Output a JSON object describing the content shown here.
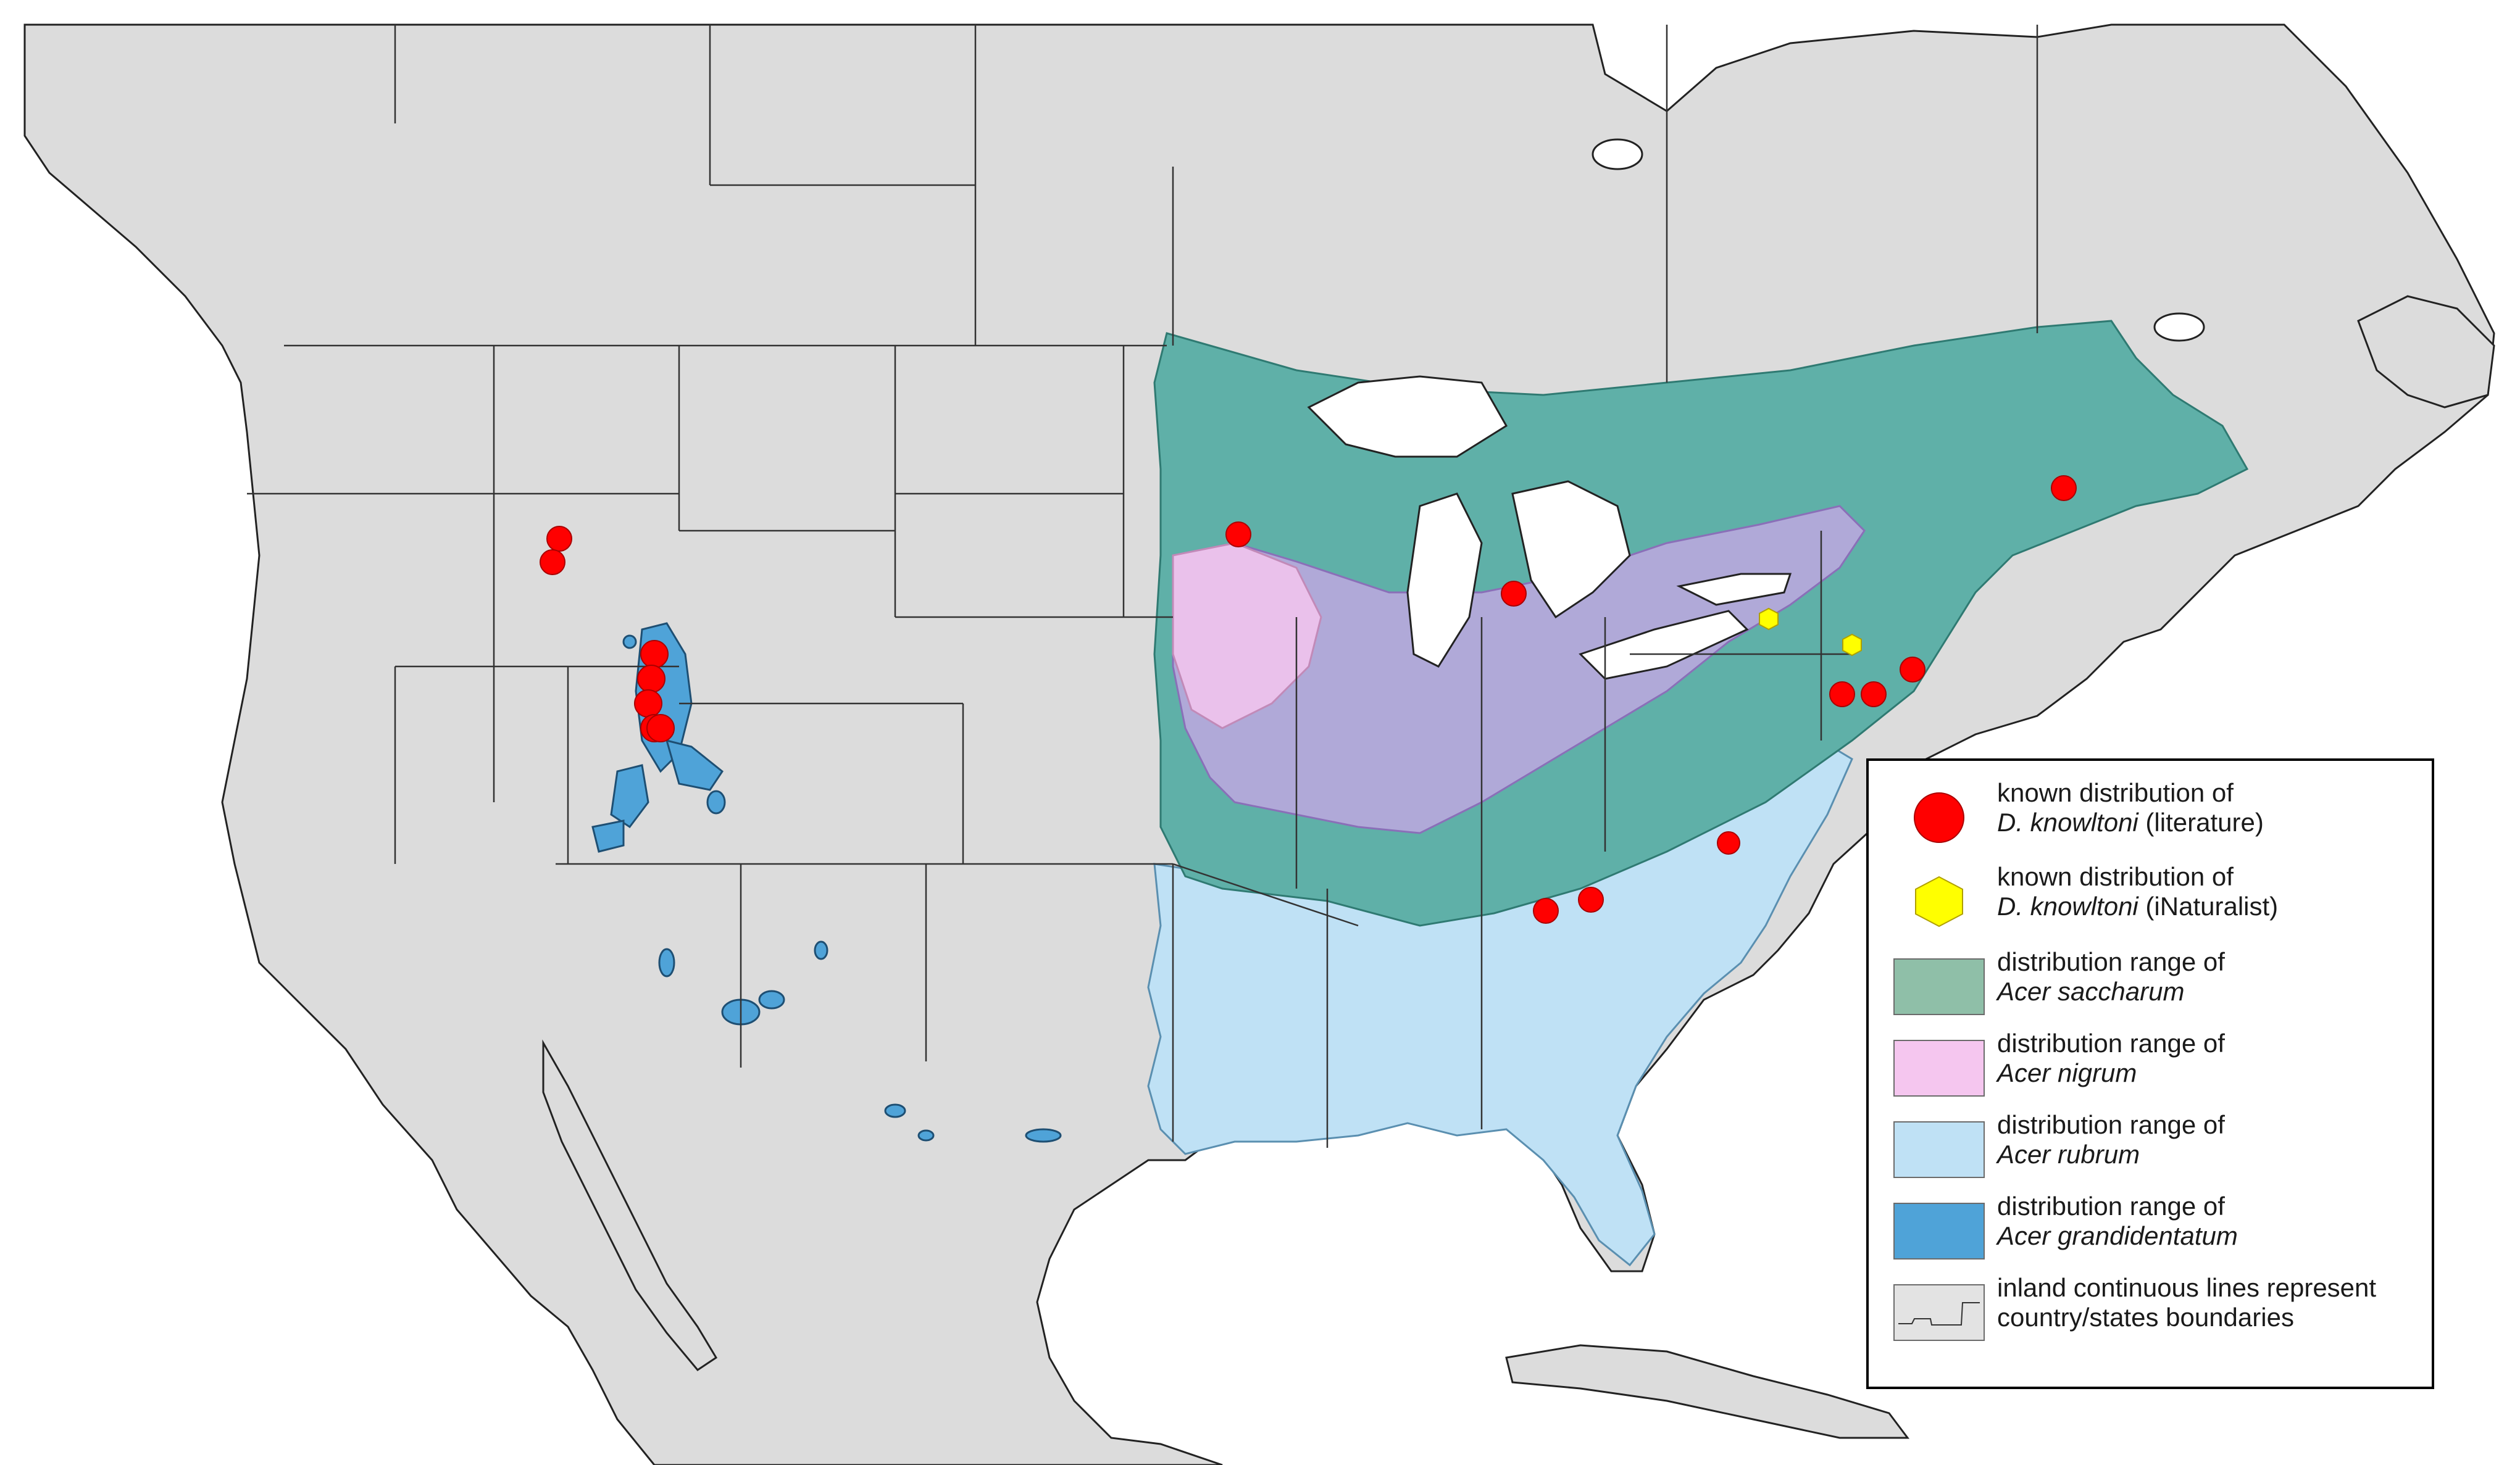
{
  "legend": {
    "items": [
      {
        "name": "literature",
        "line1": "known distribution of",
        "species": "D. knowltoni",
        "suffix": " (literature)",
        "color": "#ff0000",
        "symbol": "circle"
      },
      {
        "name": "inaturalist",
        "line1": "known distribution of",
        "species": "D. knowltoni",
        "suffix": " (iNaturalist)",
        "color": "#ffff00",
        "symbol": "hexagon"
      },
      {
        "name": "acer-saccharum",
        "line1": "distribution range of",
        "species": "Acer saccharum",
        "suffix": "",
        "color": "#8fbfa8",
        "symbol": "swatch"
      },
      {
        "name": "acer-nigrum",
        "line1": "distribution range of",
        "species": "Acer nigrum",
        "suffix": "",
        "color": "#f5c6ef",
        "symbol": "swatch"
      },
      {
        "name": "acer-rubrum",
        "line1": "distribution range of",
        "species": "Acer rubrum",
        "suffix": "",
        "color": "#bfe1f5",
        "symbol": "swatch"
      },
      {
        "name": "acer-grandidentatum",
        "line1": "distribution range of",
        "species": "Acer grandidentatum",
        "suffix": "",
        "color": "#4fa3d8",
        "symbol": "swatch"
      },
      {
        "name": "boundaries",
        "line1": "inland continuous lines represent",
        "species": "",
        "suffix": "country/states boundaries",
        "color": "#e3e3e3",
        "symbol": "boundary"
      }
    ]
  },
  "colors": {
    "land": "#dcdcdc",
    "water": "#ffffff",
    "saccharum_teal": "#5fb0a8",
    "nigrum_purple": "#b9a8dd",
    "rubrum": "#bfe1f5",
    "grandidentatum": "#4fa3d8",
    "literature_dot": "#ff0000",
    "inaturalist_dot": "#ffff00"
  }
}
